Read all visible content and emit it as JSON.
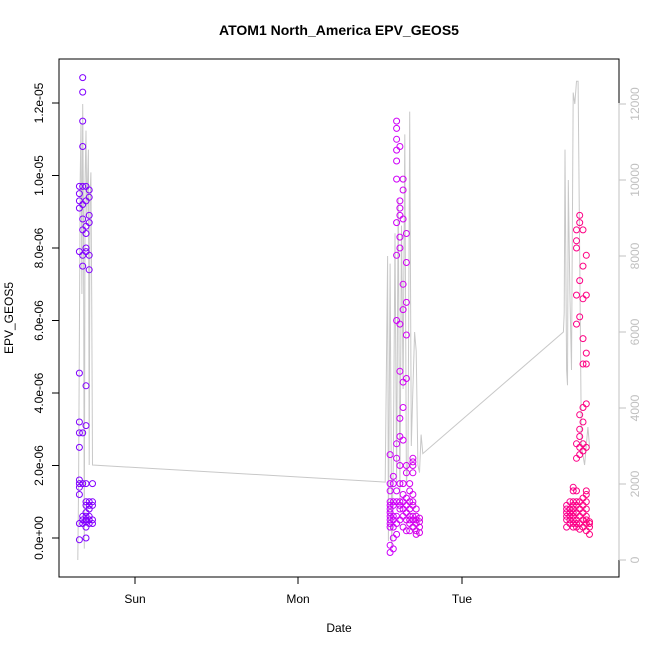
{
  "chart_data": {
    "type": "scatter",
    "title": "ATOM1 North_America EPV_GEOS5",
    "xlabel": "Date",
    "ylabel": "EPV_GEOS5",
    "x_ticks": [
      "Sun",
      "Mon",
      "Tue"
    ],
    "ylim": [
      -4.5e-07,
      1.3e-05
    ],
    "y_ticks": [
      "0.0e+00",
      "2.0e-06",
      "4.0e-06",
      "6.0e-06",
      "8.0e-06",
      "1.0e-05",
      "1.2e-05"
    ],
    "y2lim": [
      -200,
      12600
    ],
    "y2_ticks": [
      "0",
      "2000",
      "4000",
      "6000",
      "8000",
      "10000",
      "12000"
    ],
    "xlim_days": [
      -0.4,
      2.97
    ],
    "colors": {
      "points_start": "#8000ff",
      "points_mid": "#cc00ff",
      "points_end": "#ff0080",
      "line": "#c8c8c8",
      "axis": "#000000",
      "axis2": "#c0c0c0"
    },
    "point_series": [
      {
        "x": -0.34,
        "y": [
          4e-07,
          -5e-08,
          1.2e-06,
          1.4e-06,
          1.5e-06,
          1.6e-06,
          2.5e-06,
          2.9e-06,
          3.2e-06,
          4.55e-06,
          7.9e-06,
          9.1e-06,
          9.3e-06,
          9.5e-06,
          9.7e-06
        ]
      },
      {
        "x": -0.32,
        "y": [
          4e-07,
          5e-07,
          6e-07,
          1.5e-06,
          2.9e-06,
          7.5e-06,
          7.8e-06,
          8.5e-06,
          8.8e-06,
          9.2e-06,
          9.7e-06,
          1.08e-05,
          1.15e-05,
          1.23e-05,
          1.27e-05
        ]
      },
      {
        "x": -0.3,
        "y": [
          0,
          3e-07,
          4.5e-07,
          5e-07,
          6e-07,
          7e-07,
          9e-07,
          1e-06,
          1.5e-06,
          3.1e-06,
          4.2e-06,
          7.9e-06,
          8e-06,
          8.4e-06,
          8.6e-06,
          9.3e-06,
          9.7e-06
        ]
      },
      {
        "x": -0.28,
        "y": [
          4e-07,
          5e-07,
          6e-07,
          8e-07,
          9e-07,
          1e-06,
          7.4e-06,
          7.8e-06,
          8.7e-06,
          8.9e-06,
          9.4e-06,
          9.6e-06
        ]
      },
      {
        "x": -0.26,
        "y": [
          4e-07,
          5e-07,
          9e-07,
          1e-06,
          1.5e-06
        ]
      },
      {
        "x": 1.56,
        "y": [
          -4e-07,
          -2e-07,
          3e-07,
          4e-07,
          5e-07,
          6e-07,
          7e-07,
          8e-07,
          9e-07,
          1e-06,
          1.3e-06,
          1.5e-06,
          2.3e-06
        ]
      },
      {
        "x": 1.58,
        "y": [
          -3e-07,
          0,
          3e-07,
          5e-07,
          6e-07,
          9e-07,
          1e-06,
          1.5e-06,
          1.7e-06
        ]
      },
      {
        "x": 1.6,
        "y": [
          1e-07,
          4e-07,
          6e-07,
          1e-06,
          1.3e-06,
          2.2e-06,
          2.6e-06,
          6e-06,
          7.8e-06,
          8.7e-06,
          9.9e-06,
          1.04e-05,
          1.07e-05,
          1.1e-05,
          1.13e-05,
          1.15e-05
        ]
      },
      {
        "x": 1.62,
        "y": [
          5e-07,
          8e-07,
          9e-07,
          1e-06,
          1.5e-06,
          2e-06,
          2.8e-06,
          3.3e-06,
          4.6e-06,
          5.9e-06,
          8e-06,
          8.3e-06,
          8.9e-06,
          9.1e-06,
          9.3e-06,
          1.08e-05
        ]
      },
      {
        "x": 1.64,
        "y": [
          3e-07,
          6e-07,
          8e-07,
          1e-06,
          1.2e-06,
          1.5e-06,
          2.7e-06,
          3.6e-06,
          4.3e-06,
          6.3e-06,
          7e-06,
          8.8e-06,
          9.6e-06,
          9.9e-06
        ]
      },
      {
        "x": 1.66,
        "y": [
          2e-07,
          5e-07,
          7e-07,
          9e-07,
          1.1e-06,
          1.8e-06,
          2e-06,
          4.4e-06,
          5.6e-06,
          6.5e-06,
          7.6e-06,
          8.4e-06
        ]
      },
      {
        "x": 1.68,
        "y": [
          2e-07,
          4e-07,
          5e-07,
          6e-07,
          8e-07,
          1e-06,
          1.3e-06,
          1.5e-06
        ]
      },
      {
        "x": 1.7,
        "y": [
          3e-07,
          5e-07,
          6e-07,
          9e-07,
          1e-06,
          1.2e-06,
          1.8e-06,
          2e-06,
          2.1e-06,
          2.2e-06
        ]
      },
      {
        "x": 1.72,
        "y": [
          1e-07,
          2e-07,
          4e-07,
          5e-07,
          6e-07,
          8e-07
        ]
      },
      {
        "x": 1.74,
        "y": [
          1.5e-07,
          3e-07,
          4.5e-07,
          5.5e-07
        ]
      },
      {
        "x": 2.64,
        "y": [
          3e-07,
          5e-07,
          6e-07,
          7e-07,
          8e-07,
          9e-07
        ]
      },
      {
        "x": 2.66,
        "y": [
          4e-07,
          5e-07,
          6e-07,
          7e-07,
          8e-07,
          1e-06
        ]
      },
      {
        "x": 2.68,
        "y": [
          3e-07,
          4e-07,
          5e-07,
          6e-07,
          7e-07,
          8e-07,
          9e-07,
          1e-06,
          1.3e-06,
          1.4e-06
        ]
      },
      {
        "x": 2.7,
        "y": [
          3e-07,
          4e-07,
          5e-07,
          7e-07,
          9e-07,
          1e-06,
          1.3e-06,
          2.2e-06,
          2.6e-06,
          5.9e-06,
          6.7e-06,
          8e-06,
          8.2e-06,
          8.5e-06
        ]
      },
      {
        "x": 2.72,
        "y": [
          2.4e-07,
          4e-07,
          6e-07,
          8e-07,
          1e-06,
          2.3e-06,
          2.5e-06,
          2.8e-06,
          3e-06,
          3.4e-06,
          6.1e-06,
          7.1e-06,
          8.7e-06,
          8.9e-06
        ]
      },
      {
        "x": 2.74,
        "y": [
          3e-07,
          5e-07,
          7e-07,
          9e-07,
          1.1e-06,
          2.4e-06,
          2.6e-06,
          3.2e-06,
          3.6e-06,
          4.8e-06,
          5.5e-06,
          6.6e-06,
          7.5e-06,
          8.5e-06
        ]
      },
      {
        "x": 2.76,
        "y": [
          2e-07,
          4e-07,
          5e-07,
          6e-07,
          8e-07,
          1e-06,
          1.2e-06,
          1.3e-06,
          2.5e-06,
          3.7e-06,
          4.8e-06,
          5.1e-06,
          6.7e-06,
          7.8e-06
        ]
      },
      {
        "x": 2.78,
        "y": [
          1e-07,
          3e-07,
          4e-07,
          4.5e-07
        ]
      }
    ],
    "line_series": {
      "x": [
        -0.35,
        -0.345,
        -0.34,
        -0.335,
        -0.33,
        -0.325,
        -0.32,
        -0.315,
        -0.31,
        -0.305,
        -0.3,
        -0.295,
        -0.29,
        -0.285,
        -0.28,
        -0.275,
        -0.27,
        -0.265,
        -0.26,
        1.53,
        1.545,
        1.55,
        1.56,
        1.57,
        1.58,
        1.59,
        1.6,
        1.61,
        1.62,
        1.63,
        1.64,
        1.65,
        1.66,
        1.67,
        1.68,
        1.69,
        1.7,
        1.71,
        1.72,
        1.73,
        1.74,
        1.75,
        1.76,
        2.62,
        2.625,
        2.63,
        2.64,
        2.645,
        2.65,
        2.66,
        2.67,
        2.68,
        2.69,
        2.7,
        2.71,
        2.72,
        2.73,
        2.75,
        2.77,
        2.78
      ],
      "y": [
        0,
        2000,
        6000,
        10000,
        11500,
        7000,
        12000,
        9000,
        300,
        10000,
        11300,
        9000,
        10000,
        10800,
        2500,
        9500,
        10200,
        7000,
        2500,
        2050,
        8000,
        500,
        7800,
        300,
        2500,
        8600,
        2000,
        9500,
        1500,
        8800,
        4500,
        11200,
        2000,
        2600,
        11800,
        3000,
        4500,
        6000,
        5500,
        2500,
        2300,
        3300,
        2800,
        6000,
        6500,
        10800,
        5000,
        4600,
        10000,
        7000,
        5000,
        12300,
        12000,
        12600,
        12600,
        8000,
        3000,
        2500,
        3500,
        3000
      ]
    }
  }
}
